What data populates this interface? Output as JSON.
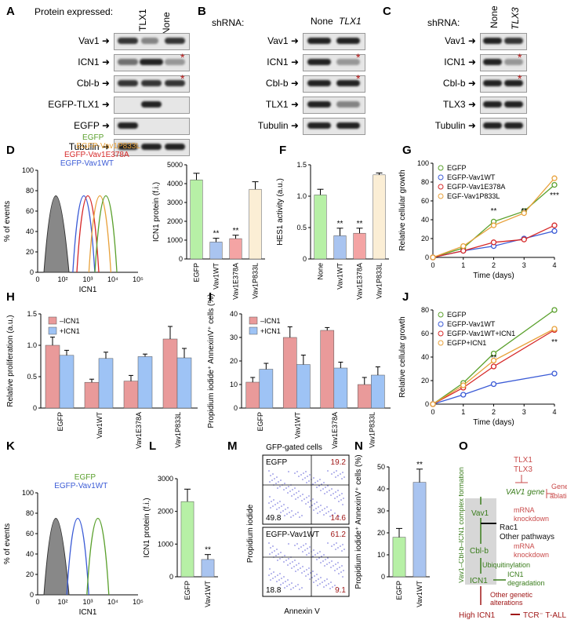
{
  "panel_letters": [
    "A",
    "B",
    "C",
    "D",
    "E",
    "F",
    "G",
    "H",
    "I",
    "J",
    "K",
    "L",
    "M",
    "N",
    "O"
  ],
  "blots": {
    "A": {
      "header": "Protein expressed:",
      "lanes": [
        "",
        "TLX1",
        "None"
      ],
      "rows": [
        "Vav1",
        "ICN1",
        "Cbl-b",
        "EGFP-TLX1",
        "EGFP",
        "Tubulin"
      ]
    },
    "B": {
      "header": "shRNA:",
      "lanes": [
        "None",
        "TLX1"
      ],
      "rows": [
        "Vav1",
        "ICN1",
        "Cbl-b",
        "TLX1",
        "Tubulin"
      ]
    },
    "C": {
      "header": "shRNA:",
      "lanes": [
        "None",
        "TLX3"
      ],
      "rows": [
        "Vav1",
        "ICN1",
        "Cbl-b",
        "TLX3",
        "Tubulin"
      ]
    },
    "asterisk": "*"
  },
  "chart_data": [
    {
      "panel": "D",
      "type": "line",
      "ylabel": "% of events",
      "xlabel": "ICN1",
      "xticks": [
        "0",
        "10²",
        "10³",
        "10⁴",
        "10⁵"
      ],
      "yticks": [
        "0",
        "20",
        "40",
        "60",
        "80",
        "100"
      ],
      "series": [
        {
          "name": "EGFP-Vav1WT",
          "color": "#3b5bd6"
        },
        {
          "name": "EGFP-Vav1E378A",
          "color": "#d62828"
        },
        {
          "name": "EGFP-Vav1P833L",
          "color": "#e8a13a"
        },
        {
          "name": "EGFP",
          "color": "#5aa02c"
        }
      ]
    },
    {
      "panel": "E",
      "type": "bar",
      "ylabel": "ICN1 protein (f.i.)",
      "ylim": [
        0,
        5000
      ],
      "yticks": [
        "0",
        "1000",
        "2000",
        "3000",
        "4000",
        "5000"
      ],
      "categories": [
        "EGFP",
        "Vav1WT",
        "Vav1E378A",
        "Vav1P833L"
      ],
      "values": [
        4200,
        900,
        1080,
        3700
      ],
      "errors": [
        350,
        200,
        180,
        400
      ],
      "sig": [
        "",
        "**",
        "**",
        ""
      ],
      "colors": [
        "#b7f0a6",
        "#a9c4f0",
        "#f4a4a4",
        "#fbeed5"
      ]
    },
    {
      "panel": "F",
      "type": "bar",
      "ylabel": "HES1 activity (a.u.)",
      "ylim": [
        0,
        1.5
      ],
      "yticks": [
        "0",
        "0.5",
        "1.0",
        "1.5"
      ],
      "categories": [
        "None",
        "Vav1WT",
        "Vav1E378A",
        "Vav1P833L"
      ],
      "values": [
        1.02,
        0.37,
        0.41,
        1.34
      ],
      "errors": [
        0.09,
        0.12,
        0.08,
        0.03
      ],
      "sig": [
        "",
        "**",
        "**",
        ""
      ],
      "colors": [
        "#b7f0a6",
        "#a9c4f0",
        "#f4a4a4",
        "#fbeed5"
      ]
    },
    {
      "panel": "G",
      "type": "line",
      "ylabel": "Relative cellular growth",
      "xlabel": "Time (days)",
      "x": [
        0,
        1,
        2,
        3,
        4
      ],
      "ylim": [
        0,
        100
      ],
      "yticks": [
        "0",
        "20",
        "40",
        "60",
        "80",
        "100"
      ],
      "series": [
        {
          "name": "EGFP",
          "color": "#5aa02c",
          "values": [
            0,
            10,
            38,
            49,
            77
          ]
        },
        {
          "name": "EGFP-Vav1WT",
          "color": "#3b5bd6",
          "values": [
            0,
            7,
            12,
            20,
            28
          ]
        },
        {
          "name": "EGFP-Vav1E378A",
          "color": "#d62828",
          "values": [
            0,
            7,
            16,
            19,
            34
          ]
        },
        {
          "name": "EGF-Vav1P833L",
          "color": "#e8a13a",
          "values": [
            0,
            12,
            34,
            47,
            84
          ]
        }
      ],
      "sig": [
        {
          "x": 2,
          "t": "**"
        },
        {
          "x": 3,
          "t": "**"
        },
        {
          "x": 4,
          "t": "***"
        }
      ]
    },
    {
      "panel": "H",
      "type": "bar",
      "ylabel": "Relative proliferation (a.u.)",
      "ylim": [
        0,
        1.5
      ],
      "yticks": [
        "0",
        "0.5",
        "1.0",
        "1.5"
      ],
      "categories": [
        "EGFP",
        "Vav1WT",
        "Vav1E378A",
        "Vav1P833L"
      ],
      "series": [
        {
          "name": "–ICN1",
          "color": "#e99a9a",
          "values": [
            1.0,
            0.41,
            0.43,
            1.1
          ],
          "errors": [
            0.13,
            0.05,
            0.09,
            0.2
          ]
        },
        {
          "name": "+ICN1",
          "color": "#9ec3f5",
          "values": [
            0.84,
            0.79,
            0.82,
            0.8
          ],
          "errors": [
            0.08,
            0.1,
            0.04,
            0.15
          ]
        }
      ],
      "sig": [
        "**",
        "**"
      ]
    },
    {
      "panel": "I",
      "type": "bar",
      "ylabel": "Propidium iodide⁺ AnnexinV⁺ cells (%)",
      "ylim": [
        0,
        40
      ],
      "yticks": [
        "0",
        "10",
        "20",
        "30",
        "40"
      ],
      "categories": [
        "EGFP",
        "Vav1WT",
        "Vav1E378A",
        "Vav1P833L"
      ],
      "series": [
        {
          "name": "–ICN1",
          "color": "#e99a9a",
          "values": [
            11,
            30,
            33,
            10
          ],
          "errors": [
            2,
            4.5,
            1.2,
            3
          ]
        },
        {
          "name": "+ICN1",
          "color": "#9ec3f5",
          "values": [
            16.5,
            18.5,
            17,
            14
          ],
          "errors": [
            2.5,
            4,
            2.5,
            3.5
          ]
        }
      ]
    },
    {
      "panel": "J",
      "type": "line",
      "ylabel": "Relative cellular growth",
      "xlabel": "Time (days)",
      "x": [
        0,
        1,
        2,
        4
      ],
      "ylim": [
        0,
        80
      ],
      "yticks": [
        "0",
        "20",
        "40",
        "60",
        "80"
      ],
      "series": [
        {
          "name": "EGFP",
          "color": "#5aa02c",
          "values": [
            0,
            18,
            43,
            80
          ]
        },
        {
          "name": "EGFP-Vav1WT",
          "color": "#3b5bd6",
          "values": [
            0,
            8,
            17,
            26
          ]
        },
        {
          "name": "EGFP-Vav1WT+ICN1",
          "color": "#d62828",
          "values": [
            0,
            14,
            32,
            63
          ]
        },
        {
          "name": "EGFP+ICN1",
          "color": "#e8a13a",
          "values": [
            0,
            16,
            37,
            64
          ]
        }
      ],
      "sig": [
        {
          "x": 2,
          "t": "**"
        },
        {
          "x": 4,
          "t": "**"
        }
      ]
    },
    {
      "panel": "K",
      "type": "line",
      "ylabel": "% of events",
      "xlabel": "ICN1",
      "xticks": [
        "0",
        "10²",
        "10³",
        "10⁴",
        "10⁵"
      ],
      "yticks": [
        "0",
        "20",
        "40",
        "60",
        "80",
        "100"
      ],
      "series": [
        {
          "name": "EGFP-Vav1WT",
          "color": "#3b5bd6"
        },
        {
          "name": "EGFP",
          "color": "#5aa02c"
        }
      ]
    },
    {
      "panel": "L",
      "type": "bar",
      "ylabel": "ICN1 protein (f.i.)",
      "ylim": [
        0,
        3000
      ],
      "yticks": [
        "0",
        "1000",
        "2000",
        "3000"
      ],
      "categories": [
        "EGFP",
        "Vav1WT"
      ],
      "values": [
        2300,
        530
      ],
      "errors": [
        380,
        150
      ],
      "sig": [
        "",
        "**"
      ],
      "colors": [
        "#b7f0a6",
        "#a9c4f0"
      ]
    },
    {
      "panel": "M",
      "type": "scatter",
      "title": "GFP-gated cells",
      "ylabel": "Propidium iodide",
      "xlabel": "Annexin V",
      "quadrants": [
        {
          "name": "EGFP",
          "ur": "19.2",
          "ll": "49.8",
          "lr": "14.6"
        },
        {
          "name": "EGFP-Vav1WT",
          "ur": "61.2",
          "ll": "18.8",
          "lr": "9.1"
        }
      ]
    },
    {
      "panel": "N",
      "type": "bar",
      "ylabel": "Propidium iodide⁺ AnnexinV⁺ cells (%)",
      "ylim": [
        0,
        50
      ],
      "yticks": [
        "0",
        "10",
        "20",
        "30",
        "40",
        "50"
      ],
      "categories": [
        "EGFP",
        "Vav1WT"
      ],
      "values": [
        18,
        43
      ],
      "errors": [
        4,
        6
      ],
      "sig": [
        "",
        "**"
      ],
      "colors": [
        "#b7f0a6",
        "#a9c4f0"
      ]
    }
  ],
  "diagram_O": {
    "tlx": [
      "TLX1",
      "TLX3"
    ],
    "vav1_gene": "VAV1 gene",
    "gene_ablation": [
      "Gene",
      "ablation"
    ],
    "vav1": "Vav1",
    "rac1": "Rac1",
    "other_pathways": "Other pathways",
    "mrna1": [
      "mRNA",
      "knockdown"
    ],
    "cblb": "Cbl-b",
    "mrna2": [
      "mRNA",
      "knockdown"
    ],
    "ubiq": "Ubiquitinylation",
    "icn1": "ICN1",
    "degradation": [
      "ICN1",
      "degradation"
    ],
    "complex": "Vav1–Cbl-b–ICN1 complex formation",
    "other_gen": [
      "Other genetic",
      "alterations"
    ],
    "high": "High ICN1",
    "tall": "TCR⁻ T-ALL",
    "colors": {
      "green": "#3a7d1c",
      "red": "#c94a4a",
      "darkred": "#a01818",
      "gray": "#d7d7d7"
    }
  }
}
